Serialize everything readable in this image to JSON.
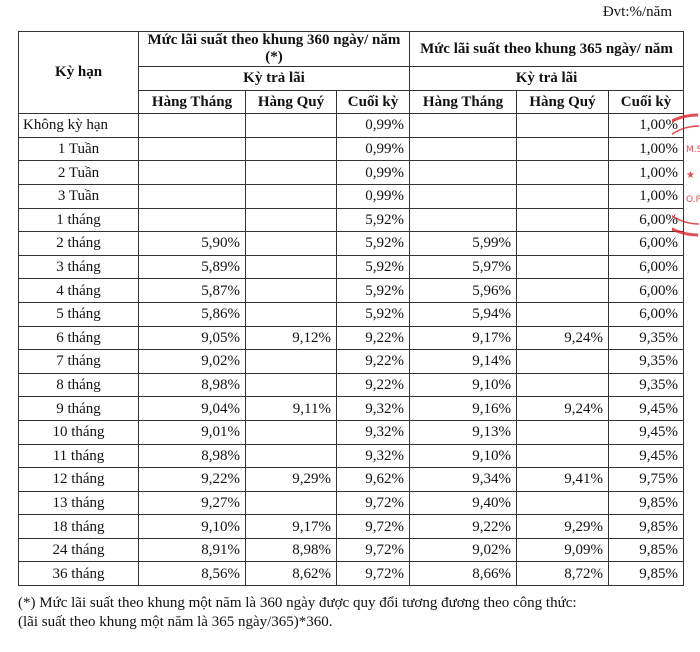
{
  "unit_label": "Đvt:%/năm",
  "header": {
    "term": "Kỳ hạn",
    "group_360": "Mức lãi suất theo khung 360 ngày/ năm (*)",
    "group_365": "Mức lãi suất theo khung 365 ngày/ năm",
    "payment_period": "Kỳ trả lãi",
    "cols": [
      "Hàng Tháng",
      "Hàng Quý",
      "Cuối kỳ",
      "Hàng Tháng",
      "Hàng Quý",
      "Cuối kỳ"
    ]
  },
  "rows": [
    [
      "Không kỳ hạn",
      "",
      "",
      "0,99%",
      "",
      "",
      "1,00%"
    ],
    [
      "1 Tuần",
      "",
      "",
      "0,99%",
      "",
      "",
      "1,00%"
    ],
    [
      "2 Tuần",
      "",
      "",
      "0,99%",
      "",
      "",
      "1,00%"
    ],
    [
      "3 Tuần",
      "",
      "",
      "0,99%",
      "",
      "",
      "1,00%"
    ],
    [
      "1 tháng",
      "",
      "",
      "5,92%",
      "",
      "",
      "6,00%"
    ],
    [
      "2 tháng",
      "5,90%",
      "",
      "5,92%",
      "5,99%",
      "",
      "6,00%"
    ],
    [
      "3 tháng",
      "5,89%",
      "",
      "5,92%",
      "5,97%",
      "",
      "6,00%"
    ],
    [
      "4 tháng",
      "5,87%",
      "",
      "5,92%",
      "5,96%",
      "",
      "6,00%"
    ],
    [
      "5 tháng",
      "5,86%",
      "",
      "5,92%",
      "5,94%",
      "",
      "6,00%"
    ],
    [
      "6 tháng",
      "9,05%",
      "9,12%",
      "9,22%",
      "9,17%",
      "9,24%",
      "9,35%"
    ],
    [
      "7 tháng",
      "9,02%",
      "",
      "9,22%",
      "9,14%",
      "",
      "9,35%"
    ],
    [
      "8 tháng",
      "8,98%",
      "",
      "9,22%",
      "9,10%",
      "",
      "9,35%"
    ],
    [
      "9 tháng",
      "9,04%",
      "9,11%",
      "9,32%",
      "9,16%",
      "9,24%",
      "9,45%"
    ],
    [
      "10 tháng",
      "9,01%",
      "",
      "9,32%",
      "9,13%",
      "",
      "9,45%"
    ],
    [
      "11 tháng",
      "8,98%",
      "",
      "9,32%",
      "9,10%",
      "",
      "9,45%"
    ],
    [
      "12 tháng",
      "9,22%",
      "9,29%",
      "9,62%",
      "9,34%",
      "9,41%",
      "9,75%"
    ],
    [
      "13 tháng",
      "9,27%",
      "",
      "9,72%",
      "9,40%",
      "",
      "9,85%"
    ],
    [
      "18 tháng",
      "9,10%",
      "9,17%",
      "9,72%",
      "9,22%",
      "9,29%",
      "9,85%"
    ],
    [
      "24 tháng",
      "8,91%",
      "8,98%",
      "9,72%",
      "9,02%",
      "9,09%",
      "9,85%"
    ],
    [
      "36 tháng",
      "8,56%",
      "8,62%",
      "9,72%",
      "8,66%",
      "8,72%",
      "9,85%"
    ]
  ],
  "footnote": {
    "line1": "(*) Mức lãi suất theo khung một năm là 360 ngày được quy đổi tương đương  theo công thức:",
    "line2": "(lãi suất theo khung một năm là 365 ngày/365)*360."
  },
  "stamp": {
    "text": "M.S. ★ O.PH",
    "color": "#e0202a"
  }
}
